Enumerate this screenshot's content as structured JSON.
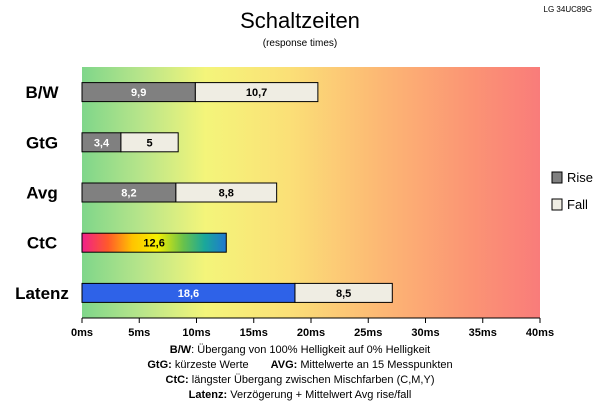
{
  "chart_data": {
    "type": "bar",
    "orientation": "horizontal",
    "stacked": true,
    "title": "Schaltzeiten",
    "subtitle": "(response times)",
    "model": "LG 34UC89G",
    "categories": [
      "B/W",
      "GtG",
      "Avg",
      "CtC",
      "Latenz"
    ],
    "series": [
      {
        "name": "Rise",
        "values": [
          9.9,
          3.4,
          8.2,
          12.6,
          18.6
        ],
        "color": "#808080",
        "labels": [
          "9,9",
          "3,4",
          "8,2",
          "12,6",
          "18,6"
        ]
      },
      {
        "name": "Fall",
        "values": [
          10.7,
          5,
          8.8,
          null,
          8.5
        ],
        "color": "#efede3",
        "labels": [
          "10,7",
          "5",
          "8,8",
          "",
          "8,5"
        ]
      }
    ],
    "special_colors": {
      "CtC": "rainbow",
      "Latenz_rise": "#2e62e8"
    },
    "xlim": [
      0,
      40
    ],
    "x_ticks": [
      0,
      5,
      10,
      15,
      20,
      25,
      30,
      35,
      40
    ],
    "x_tick_labels": [
      "0ms",
      "5ms",
      "10ms",
      "15ms",
      "20ms",
      "25ms",
      "30ms",
      "35ms",
      "40ms"
    ],
    "legend_position": "right",
    "background": "gradient green-yellow-red"
  },
  "notes": [
    {
      "key": "B/W",
      "text": ":  Übergang von 100% Helligkeit auf 0% Helligkeit"
    },
    {
      "key": "GtG:",
      "text": " kürzeste  Werte",
      "key2": "AVG:",
      "text2": " Mittelwerte  an 15 Messpunkten"
    },
    {
      "key": "CtC:",
      "text": " längster Übergang  zwischen Mischfarben (C,M,Y)"
    },
    {
      "key": "Latenz:",
      "text": " Verzögerung  + Mittelwert  Avg rise/fall"
    }
  ]
}
